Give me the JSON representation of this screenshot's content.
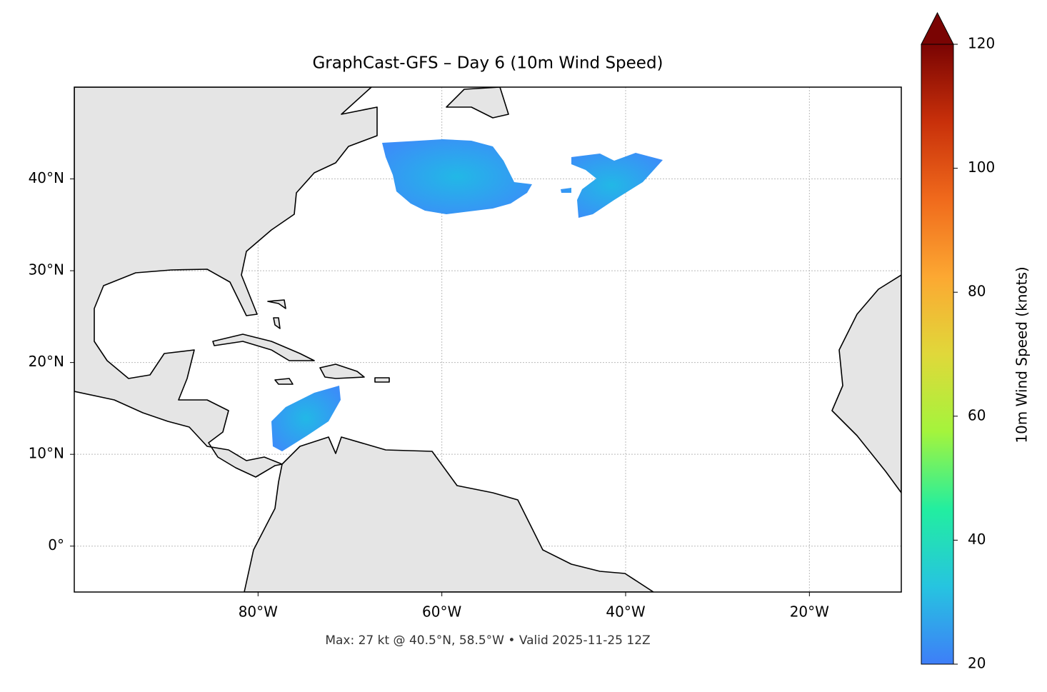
{
  "chart_data": {
    "type": "map",
    "title": "GraphCast-GFS – Day 6 (10m Wind Speed)",
    "footnote": "Max: 27 kt @ 40.5°N, 58.5°W • Valid 2025-11-25 12Z",
    "xlim": [
      -100,
      -10
    ],
    "ylim": [
      -5,
      50
    ],
    "xticks": [
      {
        "value": -80,
        "label": "80°W"
      },
      {
        "value": -60,
        "label": "60°W"
      },
      {
        "value": -40,
        "label": "40°W"
      },
      {
        "value": -20,
        "label": "20°W"
      }
    ],
    "yticks": [
      {
        "value": 0,
        "label": "0°"
      },
      {
        "value": 10,
        "label": "10°N"
      },
      {
        "value": 20,
        "label": "20°N"
      },
      {
        "value": 30,
        "label": "30°N"
      },
      {
        "value": 40,
        "label": "40°N"
      }
    ],
    "grid": true,
    "colorbar": {
      "label": "10m Wind Speed (knots)",
      "lim": [
        20,
        120
      ],
      "ticks": [
        20,
        40,
        60,
        80,
        100,
        120
      ],
      "colors": [
        "#3e7ef8",
        "#26c4e0",
        "#22eea0",
        "#a4f43c",
        "#e0d83a",
        "#fca832",
        "#f06a1c",
        "#c8300a",
        "#7a0403"
      ],
      "extend": "max"
    }
  }
}
